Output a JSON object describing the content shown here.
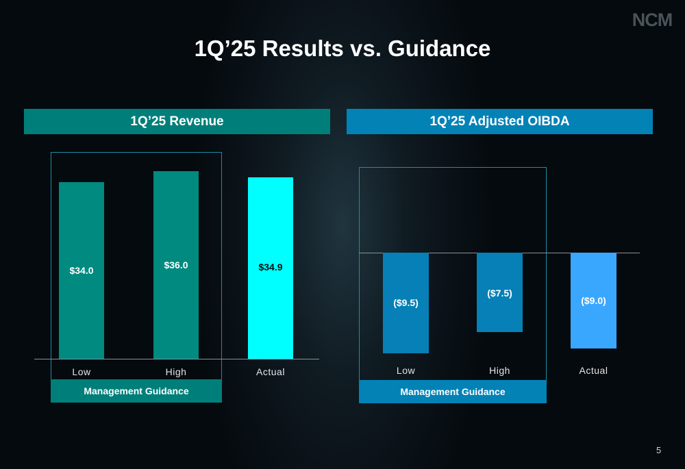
{
  "logo": "NCM",
  "title": "1Q’25 Results vs. Guidance",
  "page_number": "5",
  "colors": {
    "revenue_header": "#007f7a",
    "oibda_header": "#0382b6",
    "revenue_bar": "#008a80",
    "revenue_actual": "#00ffff",
    "oibda_bar": "#0680b6",
    "oibda_actual": "#3aa7ff"
  },
  "chart_data": [
    {
      "type": "bar",
      "title": "1Q’25 Revenue",
      "categories": [
        "Low",
        "High",
        "Actual"
      ],
      "values": [
        34.0,
        36.0,
        34.9
      ],
      "labels": [
        "$34.0",
        "$36.0",
        "$34.9"
      ],
      "group_label": "Management Guidance",
      "group_categories": [
        "Low",
        "High"
      ],
      "ylim": [
        0,
        36
      ]
    },
    {
      "type": "bar",
      "title": "1Q’25 Adjusted OIBDA",
      "categories": [
        "Low",
        "High",
        "Actual"
      ],
      "values": [
        -9.5,
        -7.5,
        -9.0
      ],
      "labels": [
        "($9.5)",
        "($7.5)",
        "($9.0)"
      ],
      "group_label": "Management Guidance",
      "group_categories": [
        "Low",
        "High"
      ],
      "ylim": [
        -9.5,
        0
      ]
    }
  ]
}
